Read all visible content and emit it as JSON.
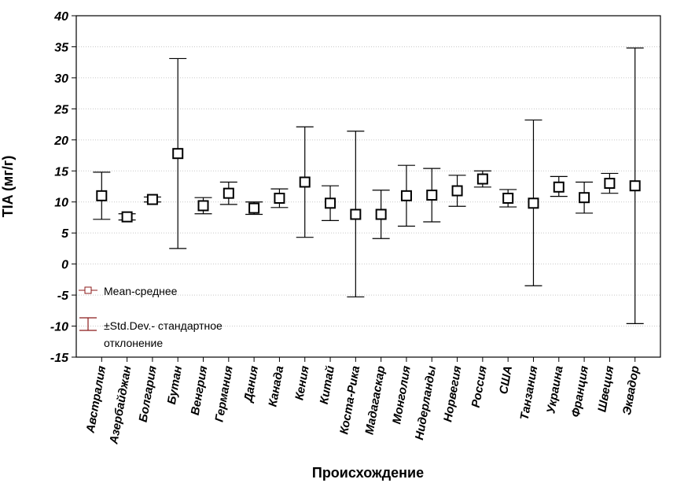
{
  "chart_data": {
    "type": "scatter",
    "xlabel": "Происхождение",
    "ylabel": "TIA (мг/г)",
    "ylim": [
      -15,
      40
    ],
    "yticks": [
      -15,
      -10,
      -5,
      0,
      5,
      10,
      15,
      20,
      25,
      30,
      35,
      40
    ],
    "grid": true,
    "categories": [
      "Австралия",
      "Азербайджан",
      "Болгария",
      "Бутан",
      "Венгрия",
      "Германия",
      "Дания",
      "Канада",
      "Кения",
      "Китай",
      "Коста-Рика",
      "Мадагаскар",
      "Монголия",
      "Нидерланды",
      "Норвегия",
      "Россия",
      "США",
      "Танзания",
      "Украина",
      "Франция",
      "Швеция",
      "Эквадор"
    ],
    "series": [
      {
        "name": "Mean-среднее",
        "values": [
          11.0,
          7.6,
          10.4,
          17.8,
          9.4,
          11.4,
          9.0,
          10.6,
          13.2,
          9.8,
          8.0,
          8.0,
          11.0,
          11.1,
          11.8,
          13.7,
          10.6,
          9.8,
          12.4,
          10.7,
          13.0,
          12.6
        ]
      },
      {
        "name": "±Std.Dev.- стандартное отклонение",
        "lower": [
          7.2,
          7.1,
          10.0,
          2.5,
          8.1,
          9.6,
          8.0,
          9.1,
          4.3,
          7.0,
          -5.3,
          4.1,
          6.1,
          6.8,
          9.3,
          12.4,
          9.2,
          -3.5,
          10.9,
          8.2,
          11.4,
          -9.6
        ],
        "upper": [
          14.8,
          8.1,
          10.8,
          33.1,
          10.7,
          13.2,
          10.0,
          12.1,
          22.1,
          12.6,
          21.4,
          11.9,
          15.9,
          15.4,
          14.3,
          15.0,
          12.0,
          23.2,
          14.1,
          13.2,
          14.6,
          34.8
        ]
      }
    ],
    "legend": {
      "position": "bottom-left",
      "mean_label": "Mean-среднее",
      "sd_label_line1": "±Std.Dev.- стандартное",
      "sd_label_line2": "отклонение"
    },
    "colors": {
      "legend_marker": "#8b1a1a",
      "marks": "#000000",
      "grid": "#c8c8c8"
    }
  }
}
